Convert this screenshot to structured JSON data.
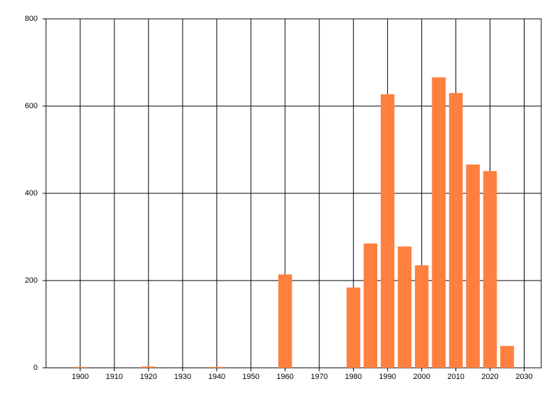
{
  "chart_data": {
    "type": "bar",
    "x": [
      1900,
      1920,
      1940,
      1960,
      1980,
      1985,
      1990,
      1995,
      2000,
      2005,
      2010,
      2015,
      2020,
      2025
    ],
    "values": [
      2,
      3,
      2,
      214,
      184,
      285,
      627,
      278,
      235,
      666,
      630,
      466,
      451,
      50
    ],
    "color": "#ff7f3f",
    "xlim": [
      1890,
      2035
    ],
    "xticks": [
      1900,
      1910,
      1920,
      1930,
      1940,
      1950,
      1960,
      1970,
      1980,
      1990,
      2000,
      2010,
      2020,
      2030
    ],
    "ylim": [
      0,
      800
    ],
    "yticks": [
      0,
      200,
      400,
      600,
      800
    ],
    "grid": true
  }
}
